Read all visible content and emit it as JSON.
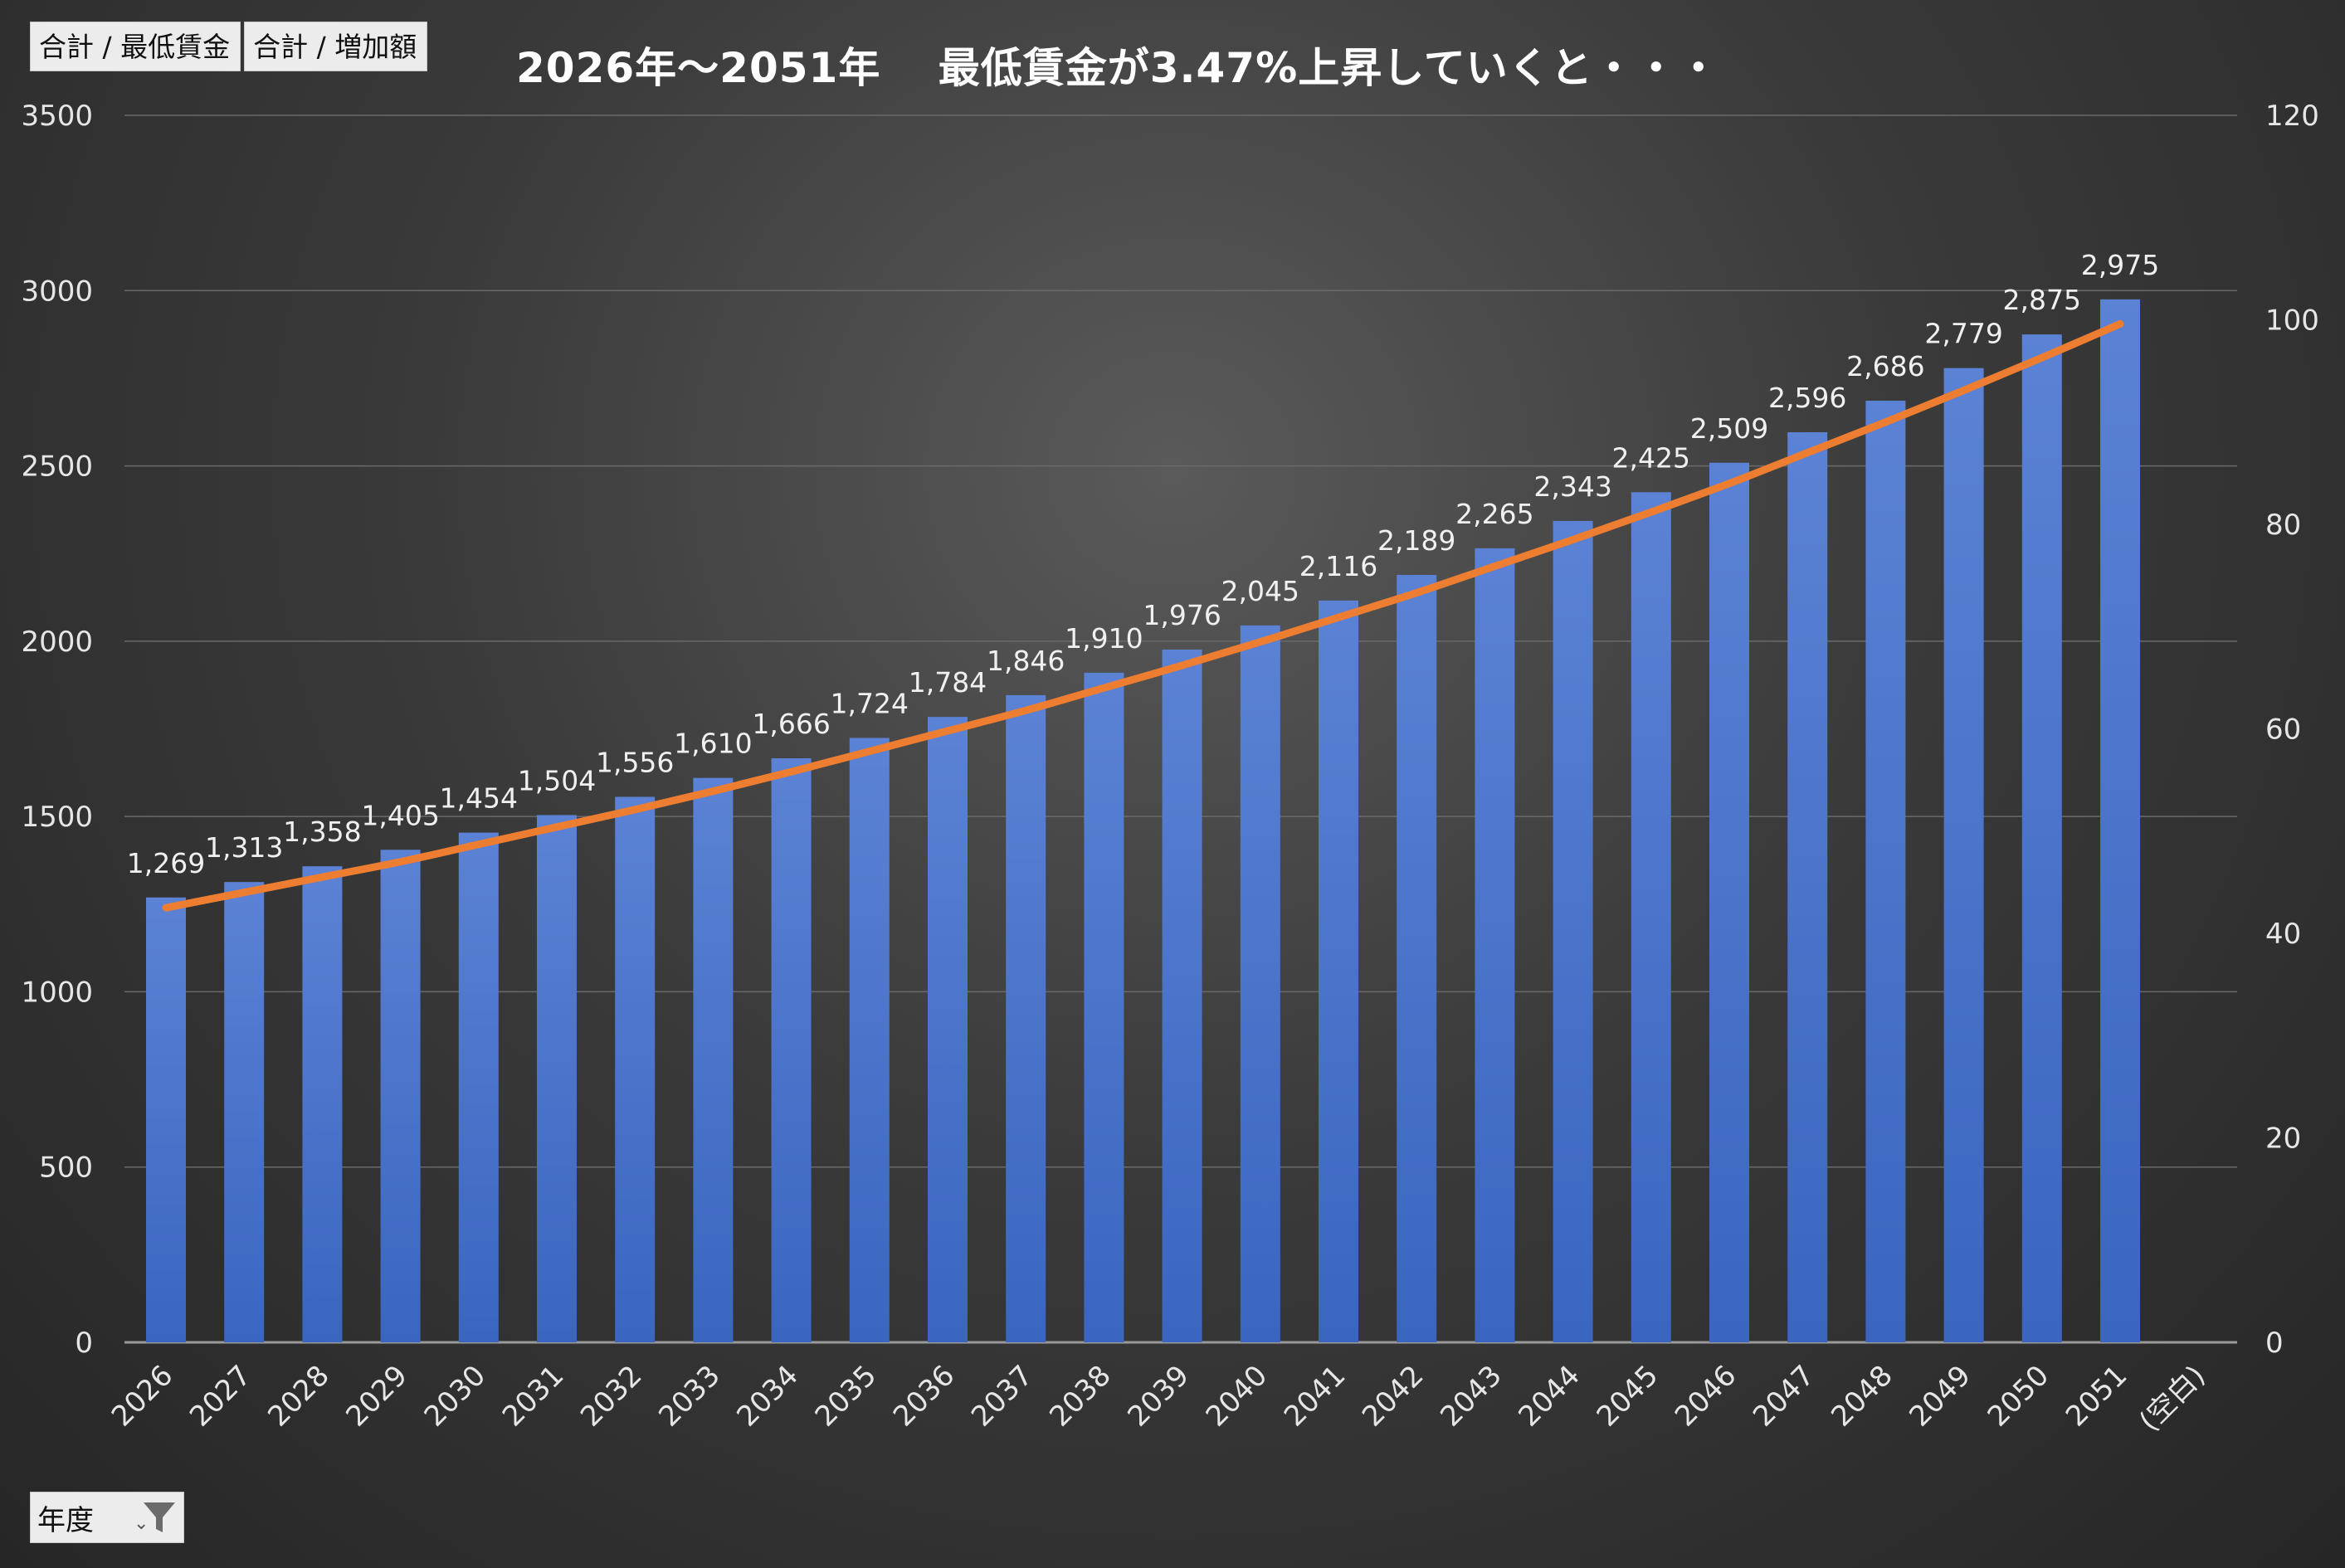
{
  "field_buttons": [
    "合計 / 最低賃金",
    "合計 / 増加額"
  ],
  "filter": {
    "label": "年度"
  },
  "chart_data": {
    "type": "bar",
    "title": "2026年～2051年　 最低賃金が3.47%上昇していくと・・・",
    "categories": [
      "2026",
      "2027",
      "2028",
      "2029",
      "2030",
      "2031",
      "2032",
      "2033",
      "2034",
      "2035",
      "2036",
      "2037",
      "2038",
      "2039",
      "2040",
      "2041",
      "2042",
      "2043",
      "2044",
      "2045",
      "2046",
      "2047",
      "2048",
      "2049",
      "2050",
      "2051",
      "(空白)"
    ],
    "series": [
      {
        "name": "合計 / 最低賃金",
        "axis": "left",
        "kind": "bar",
        "color": "#4472c4",
        "values": [
          1269,
          1313,
          1358,
          1405,
          1454,
          1504,
          1556,
          1610,
          1666,
          1724,
          1784,
          1846,
          1910,
          1976,
          2045,
          2116,
          2189,
          2265,
          2343,
          2425,
          2509,
          2596,
          2686,
          2779,
          2875,
          2975,
          null
        ],
        "labels": [
          "1,269",
          "1,313",
          "1,358",
          "1,405",
          "1,454",
          "1,504",
          "1,556",
          "1,610",
          "1,666",
          "1,724",
          "1,784",
          "1,846",
          "1,910",
          "1,976",
          "2,045",
          "2,116",
          "2,189",
          "2,265",
          "2,343",
          "2,425",
          "2,509",
          "2,596",
          "2,686",
          "2,779",
          "2,875",
          "2,975",
          ""
        ]
      },
      {
        "name": "合計 / 増加額",
        "axis": "right",
        "kind": "line",
        "color": "#ed7d31",
        "values": [
          42.5,
          44.0,
          45.5,
          47.0,
          48.7,
          50.4,
          52.1,
          53.9,
          55.8,
          57.8,
          59.8,
          61.8,
          64.0,
          66.2,
          68.5,
          70.9,
          73.3,
          75.9,
          78.5,
          81.2,
          84.0,
          87.0,
          90.0,
          93.1,
          96.3,
          99.6,
          null
        ]
      }
    ],
    "y_left": {
      "ylim": [
        0,
        3500
      ],
      "ticks": [
        "0",
        "500",
        "1000",
        "1500",
        "2000",
        "2500",
        "3000",
        "3500"
      ]
    },
    "y_right": {
      "ylim": [
        0,
        120
      ],
      "ticks": [
        "0",
        "20",
        "40",
        "60",
        "80",
        "100",
        "120"
      ]
    },
    "grid": true,
    "legend": "top-left"
  }
}
